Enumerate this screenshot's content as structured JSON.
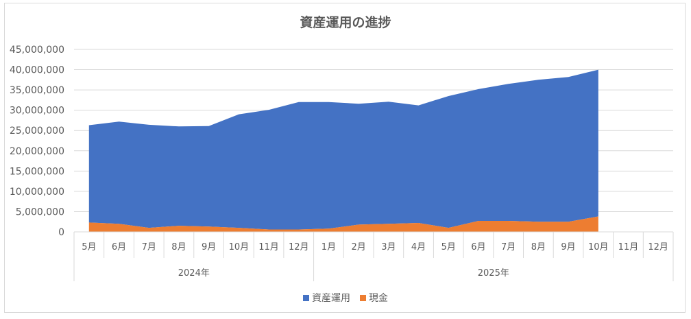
{
  "chart_data": {
    "type": "area",
    "stacked": true,
    "title": "資産運用の進捗",
    "categories": [
      "5月",
      "6月",
      "7月",
      "8月",
      "9月",
      "10月",
      "11月",
      "12月",
      "1月",
      "2月",
      "3月",
      "4月",
      "5月",
      "6月",
      "7月",
      "8月",
      "9月",
      "10月",
      "11月",
      "12月"
    ],
    "groups": [
      {
        "label": "2024年",
        "start": 0,
        "end": 7
      },
      {
        "label": "2025年",
        "start": 8,
        "end": 19
      }
    ],
    "series": [
      {
        "name": "現金",
        "color": "#ed7d31",
        "values": [
          2300000,
          2000000,
          1000000,
          1500000,
          1300000,
          1000000,
          600000,
          600000,
          800000,
          1800000,
          2000000,
          2200000,
          1000000,
          2700000,
          2700000,
          2500000,
          2500000,
          3800000,
          null,
          null
        ]
      },
      {
        "name": "資産運用",
        "color": "#4472c4",
        "values": [
          24000000,
          25200000,
          25400000,
          24500000,
          24800000,
          28000000,
          29500000,
          31400000,
          31200000,
          29800000,
          30100000,
          29000000,
          32500000,
          32500000,
          33800000,
          35000000,
          35700000,
          36200000,
          null,
          null
        ]
      }
    ],
    "yticks": [
      "0",
      "5,000,000",
      "10,000,000",
      "15,000,000",
      "20,000,000",
      "25,000,000",
      "30,000,000",
      "35,000,000",
      "40,000,000",
      "45,000,000"
    ],
    "ylim": [
      0,
      45000000
    ],
    "grid": true,
    "legend_position": "bottom"
  },
  "legend": [
    {
      "label": "資産運用",
      "color": "#4472c4"
    },
    {
      "label": "現金",
      "color": "#ed7d31"
    }
  ]
}
